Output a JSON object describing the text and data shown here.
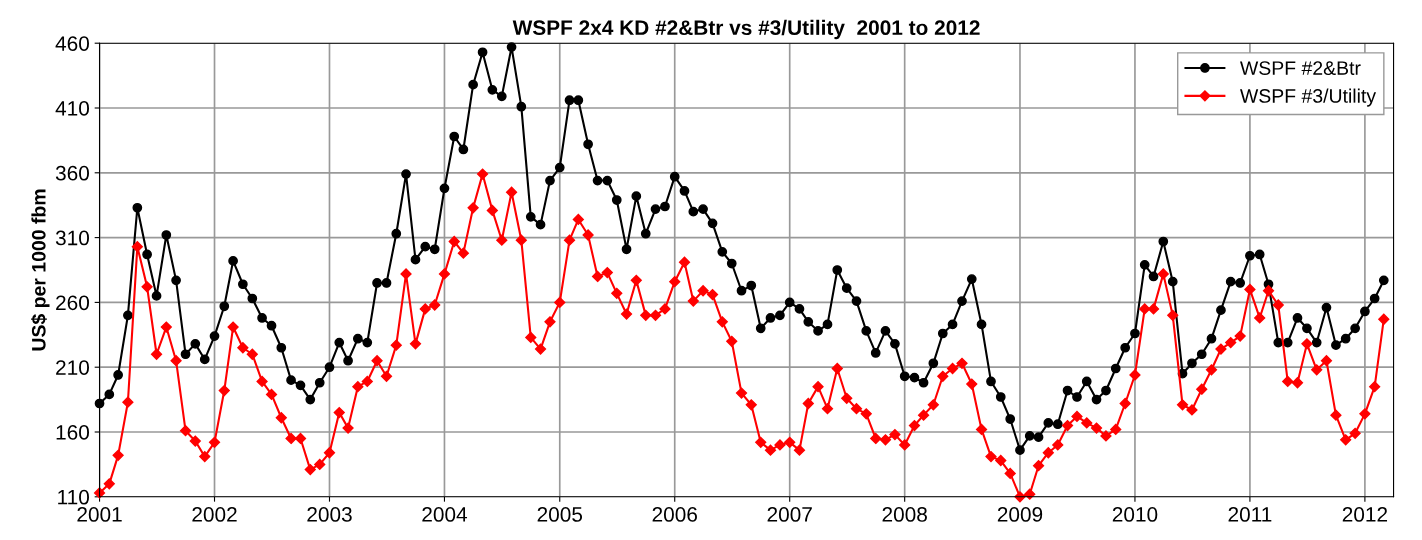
{
  "chart_data": {
    "type": "line",
    "title": "WSPF 2x4 KD #2&Btr vs #3/Utility  2001 to 2012",
    "ylabel": "US$ per 1000 fbm",
    "x": [
      "2001-01",
      "2001-02",
      "2001-03",
      "2001-04",
      "2001-05",
      "2001-06",
      "2001-07",
      "2001-08",
      "2001-09",
      "2001-10",
      "2001-11",
      "2001-12",
      "2002-01",
      "2002-02",
      "2002-03",
      "2002-04",
      "2002-05",
      "2002-06",
      "2002-07",
      "2002-08",
      "2002-09",
      "2002-10",
      "2002-11",
      "2002-12",
      "2003-01",
      "2003-02",
      "2003-03",
      "2003-04",
      "2003-05",
      "2003-06",
      "2003-07",
      "2003-08",
      "2003-09",
      "2003-10",
      "2003-11",
      "2003-12",
      "2004-01",
      "2004-02",
      "2004-03",
      "2004-04",
      "2004-05",
      "2004-06",
      "2004-07",
      "2004-08",
      "2004-09",
      "2004-10",
      "2004-11",
      "2004-12",
      "2005-01",
      "2005-02",
      "2005-03",
      "2005-04",
      "2005-05",
      "2005-06",
      "2005-07",
      "2005-08",
      "2005-09",
      "2005-10",
      "2005-11",
      "2005-12",
      "2006-01",
      "2006-02",
      "2006-03",
      "2006-04",
      "2006-05",
      "2006-06",
      "2006-07",
      "2006-08",
      "2006-09",
      "2006-10",
      "2006-11",
      "2006-12",
      "2007-01",
      "2007-02",
      "2007-03",
      "2007-04",
      "2007-05",
      "2007-06",
      "2007-07",
      "2007-08",
      "2007-09",
      "2007-10",
      "2007-11",
      "2007-12",
      "2008-01",
      "2008-02",
      "2008-03",
      "2008-04",
      "2008-05",
      "2008-06",
      "2008-07",
      "2008-08",
      "2008-09",
      "2008-10",
      "2008-11",
      "2008-12",
      "2009-01",
      "2009-02",
      "2009-03",
      "2009-04",
      "2009-05",
      "2009-06",
      "2009-07",
      "2009-08",
      "2009-09",
      "2009-10",
      "2009-11",
      "2009-12",
      "2010-01",
      "2010-02",
      "2010-03",
      "2010-04",
      "2010-05",
      "2010-06",
      "2010-07",
      "2010-08",
      "2010-09",
      "2010-10",
      "2010-11",
      "2010-12",
      "2011-01",
      "2011-02",
      "2011-03",
      "2011-04",
      "2011-05",
      "2011-06",
      "2011-07",
      "2011-08",
      "2011-09",
      "2011-10",
      "2011-11",
      "2011-12",
      "2012-01",
      "2012-02",
      "2012-03"
    ],
    "series": [
      {
        "name": "WSPF #2&Btr",
        "color": "#000000",
        "marker": "circle",
        "values": [
          182,
          189,
          204,
          250,
          333,
          297,
          265,
          312,
          277,
          220,
          228,
          216,
          234,
          257,
          292,
          274,
          263,
          248,
          242,
          225,
          200,
          196,
          185,
          198,
          210,
          229,
          215,
          232,
          229,
          275,
          275,
          313,
          359,
          293,
          303,
          301,
          348,
          388,
          378,
          428,
          453,
          424,
          419,
          457,
          411,
          326,
          320,
          354,
          364,
          416,
          416,
          382,
          354,
          354,
          339,
          301,
          342,
          313,
          332,
          334,
          357,
          346,
          330,
          332,
          321,
          299,
          290,
          269,
          273,
          240,
          248,
          250,
          260,
          255,
          245,
          238,
          243,
          285,
          271,
          261,
          238,
          221,
          238,
          228,
          203,
          202,
          198,
          213,
          236,
          243,
          261,
          278,
          243,
          199,
          187,
          170,
          146,
          157,
          156,
          167,
          166,
          192,
          187,
          199,
          185,
          192,
          209,
          225,
          236,
          289,
          280,
          307,
          276,
          205,
          213,
          220,
          232,
          254,
          276,
          275,
          296,
          297,
          274,
          229,
          229,
          248,
          240,
          229,
          256,
          227,
          232,
          240,
          253,
          263,
          277
        ]
      },
      {
        "name": "WSPF #3/Utility",
        "color": "#ff0000",
        "marker": "diamond",
        "values": [
          113,
          120,
          142,
          183,
          303,
          272,
          220,
          241,
          215,
          161,
          153,
          141,
          152,
          192,
          241,
          225,
          220,
          199,
          189,
          171,
          155,
          155,
          131,
          135,
          144,
          175,
          163,
          195,
          199,
          215,
          203,
          227,
          282,
          228,
          255,
          258,
          282,
          307,
          298,
          333,
          359,
          331,
          308,
          345,
          308,
          233,
          224,
          245,
          260,
          308,
          324,
          312,
          280,
          283,
          267,
          251,
          277,
          250,
          250,
          255,
          276,
          291,
          261,
          269,
          266,
          245,
          230,
          190,
          181,
          152,
          146,
          150,
          152,
          146,
          182,
          195,
          178,
          209,
          186,
          178,
          174,
          155,
          154,
          158,
          150,
          165,
          173,
          181,
          203,
          209,
          213,
          197,
          162,
          141,
          138,
          128,
          110,
          112,
          134,
          144,
          150,
          165,
          172,
          167,
          163,
          157,
          162,
          182,
          204,
          255,
          255,
          282,
          250,
          181,
          177,
          193,
          208,
          224,
          229,
          234,
          270,
          248,
          269,
          258,
          199,
          198,
          228,
          208,
          215,
          173,
          154,
          159,
          174,
          195,
          247
        ]
      }
    ],
    "xlim": [
      "2001-01",
      "2012-04"
    ],
    "xticks": [
      "2001",
      "2002",
      "2003",
      "2004",
      "2005",
      "2006",
      "2007",
      "2008",
      "2009",
      "2010",
      "2011",
      "2012"
    ],
    "ylim": [
      110,
      460
    ],
    "yticks": [
      110,
      160,
      210,
      260,
      310,
      360,
      410,
      460
    ],
    "grid": true,
    "legend": "top right",
    "line_style": "solid"
  }
}
